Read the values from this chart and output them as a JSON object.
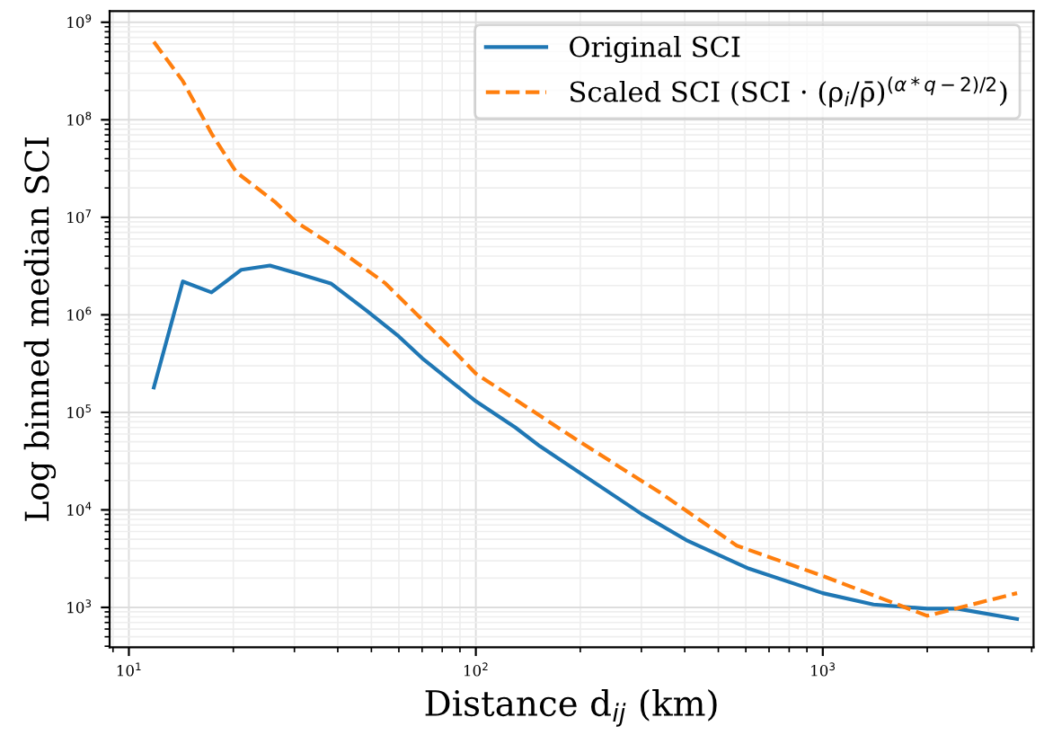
{
  "chart_data": {
    "type": "line",
    "xlabel": "Distance d$_{ij}$ (km)",
    "ylabel": "Log binned median SCI",
    "log": "xy",
    "grid": true,
    "legend": "top right",
    "xlim": [
      8.8,
      4050
    ],
    "ylim": [
      390,
      1300000000
    ],
    "xticks": [
      {
        "value": 10,
        "label": "10$^{1}$"
      },
      {
        "value": 100,
        "label": "10$^{2}$"
      },
      {
        "value": 1000,
        "label": "10$^{3}$"
      }
    ],
    "yticks": [
      {
        "value": 1000,
        "label": "10$^{3}$"
      },
      {
        "value": 10000,
        "label": "10$^{4}$"
      },
      {
        "value": 100000,
        "label": "10$^{5}$"
      },
      {
        "value": 1000000,
        "label": "10$^{6}$"
      },
      {
        "value": 10000000,
        "label": "10$^{7}$"
      },
      {
        "value": 100000000,
        "label": "10$^{8}$"
      },
      {
        "value": 1000000000,
        "label": "10$^{9}$"
      }
    ],
    "series": [
      {
        "name": "Original SCI",
        "color": "#1f77b4",
        "line_style": "solid",
        "x": [
          11.8,
          14.3,
          17.3,
          21.1,
          25.5,
          31.2,
          38.2,
          48.5,
          60,
          70,
          100,
          130,
          153,
          300,
          404,
          612,
          1000,
          1400,
          2000,
          2440,
          3630
        ],
        "values": [
          180000,
          2200000,
          1700000,
          2900000,
          3200000,
          2600000,
          2100000,
          1100000,
          600000,
          360000,
          130000,
          70000,
          45000,
          9100,
          4900,
          2500,
          1400,
          1070,
          970,
          970,
          760
        ]
      },
      {
        "name": "Scaled SCI (SCI · (ρ$_{i}$/ρ̄)$^{(α*q−2)/2}$)",
        "color": "#ff7f0e",
        "line_style": "dashed",
        "x": [
          11.8,
          14.3,
          17.4,
          20.4,
          26.3,
          30.3,
          39.8,
          54.9,
          84.6,
          100,
          191,
          340,
          565,
          1000,
          2000,
          3630
        ],
        "values": [
          630000000,
          250000000,
          70000000,
          29000000,
          14500000,
          9000000,
          4800000,
          2100000,
          460000,
          250000,
          55000,
          15000,
          4300,
          2100,
          820,
          1400
        ]
      }
    ]
  }
}
